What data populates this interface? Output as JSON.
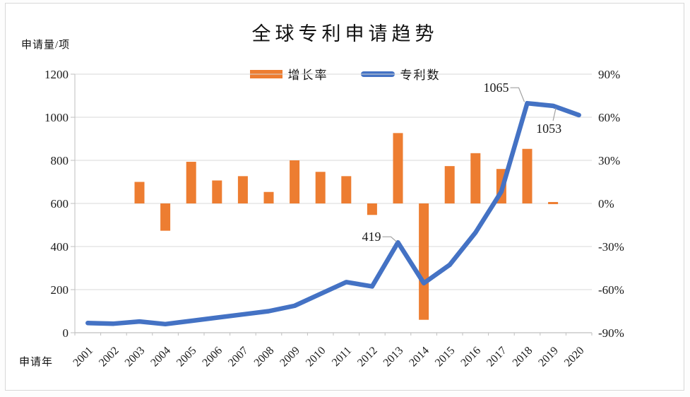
{
  "title": "全球专利申请趋势",
  "colors": {
    "bar": "#ED7D31",
    "line": "#4472C4",
    "grid": "#D9D9D9",
    "axis": "#BFBFBF",
    "leader": "#A0A0A0",
    "text": "#1a1a1a"
  },
  "chart_data": {
    "type": "combo-bar-line",
    "title": "全球专利申请趋势",
    "legend_position": "top",
    "grid": true,
    "categories": [
      "2001",
      "2002",
      "2003",
      "2004",
      "2005",
      "2006",
      "2007",
      "2008",
      "2009",
      "2010",
      "2011",
      "2012",
      "2013",
      "2014",
      "2015",
      "2016",
      "2017",
      "2018",
      "2019",
      "2020"
    ],
    "x_axis": {
      "label": "申请年"
    },
    "left_axis": {
      "unit_label": "申请量/项",
      "min": 0,
      "max": 1200,
      "tick_step": 200,
      "ticks": [
        1200,
        1000,
        800,
        600,
        400,
        200,
        0
      ]
    },
    "right_axis": {
      "min": -90,
      "max": 90,
      "tick_step": 30,
      "ticks": [
        "90%",
        "60%",
        "30%",
        "0%",
        "-30%",
        "-60%",
        "-90%"
      ]
    },
    "series": [
      {
        "name": "增长率",
        "type": "bar",
        "axis": "right",
        "unit": "%",
        "color": "#ED7D31",
        "values": [
          null,
          null,
          15,
          -19,
          29,
          16,
          19,
          8,
          30,
          22,
          19,
          -8,
          49,
          -81,
          26,
          35,
          24,
          38,
          1,
          null
        ]
      },
      {
        "name": "专利数",
        "type": "line",
        "axis": "left",
        "color": "#4472C4",
        "values": [
          45,
          42,
          52,
          40,
          55,
          70,
          85,
          100,
          125,
          180,
          235,
          215,
          419,
          230,
          315,
          465,
          655,
          1065,
          1053,
          1010
        ]
      }
    ],
    "annotations": [
      {
        "text": "419",
        "category": "2013",
        "series": "专利数",
        "value": 419
      },
      {
        "text": "1065",
        "category": "2018",
        "series": "专利数",
        "value": 1065
      },
      {
        "text": "1053",
        "category": "2019",
        "series": "专利数",
        "value": 1053
      }
    ]
  }
}
